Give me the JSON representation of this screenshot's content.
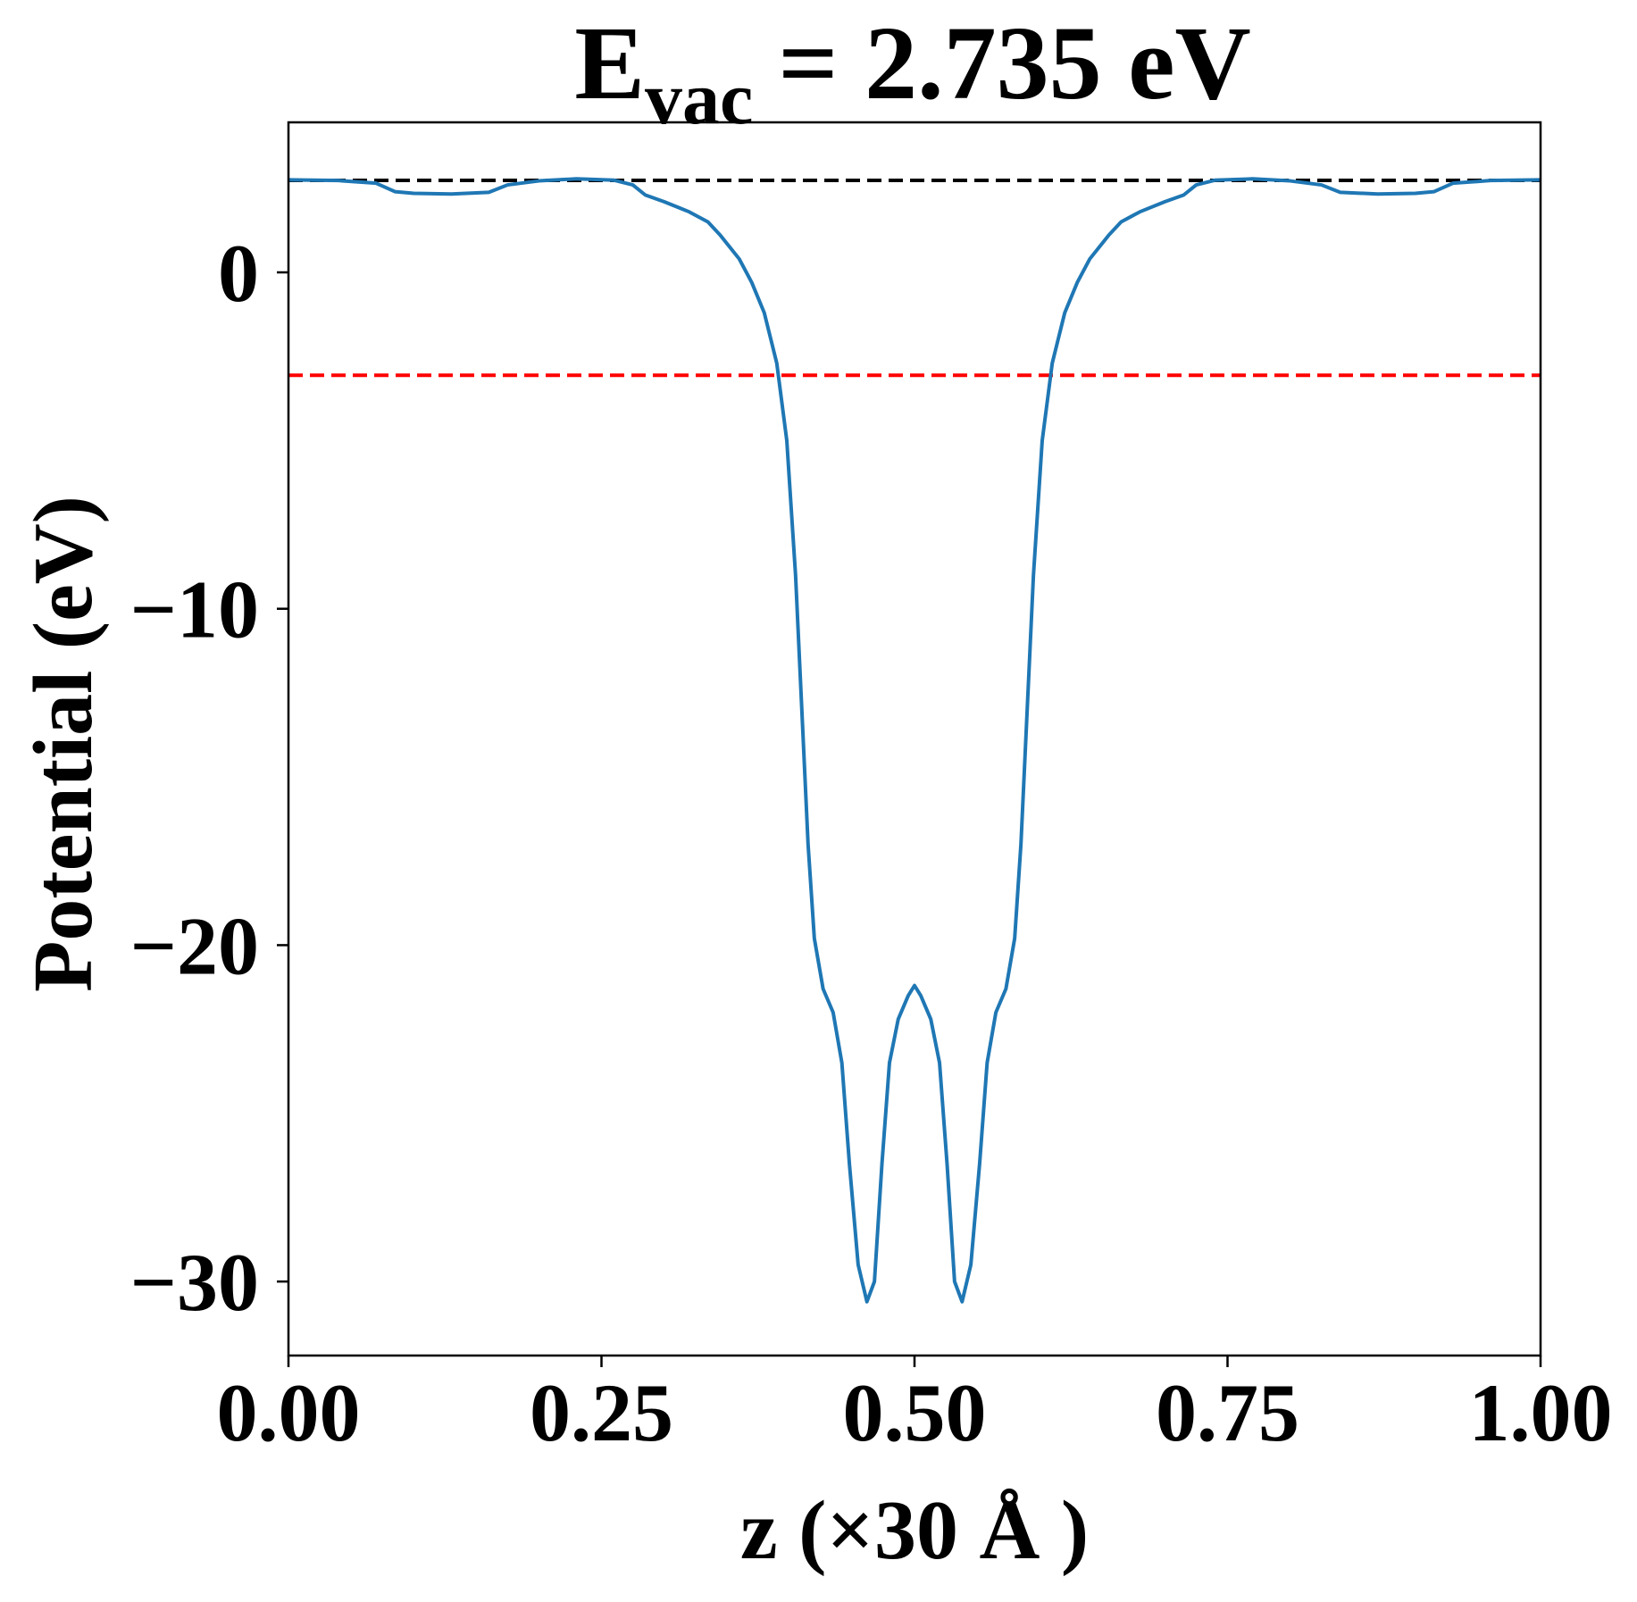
{
  "chart_data": {
    "type": "line",
    "title": {
      "main": "E",
      "subscript": "vac",
      "rest": "= 2.735 eV"
    },
    "xlabel": "z (×30 Å )",
    "ylabel": "Potential (eV)",
    "x": [
      0,
      0.04,
      0.07,
      0.085,
      0.1,
      0.13,
      0.16,
      0.175,
      0.2,
      0.23,
      0.26,
      0.275,
      0.285,
      0.3,
      0.32,
      0.335,
      0.345,
      0.36,
      0.37,
      0.38,
      0.39,
      0.398,
      0.405,
      0.41,
      0.415,
      0.42,
      0.427,
      0.435,
      0.442,
      0.448,
      0.455,
      0.462,
      0.468,
      0.474,
      0.48,
      0.487,
      0.495,
      0.5,
      0.505,
      0.513,
      0.52,
      0.526,
      0.532,
      0.538,
      0.545,
      0.552,
      0.558,
      0.565,
      0.573,
      0.58,
      0.585,
      0.59,
      0.595,
      0.602,
      0.61,
      0.62,
      0.63,
      0.64,
      0.655,
      0.665,
      0.68,
      0.7,
      0.715,
      0.725,
      0.74,
      0.77,
      0.8,
      0.825,
      0.84,
      0.87,
      0.9,
      0.915,
      0.93,
      0.96,
      1.0
    ],
    "series": [
      {
        "color": "#1f77b4",
        "values": [
          2.75,
          2.73,
          2.65,
          2.4,
          2.35,
          2.33,
          2.38,
          2.6,
          2.72,
          2.78,
          2.74,
          2.6,
          2.3,
          2.1,
          1.8,
          1.5,
          1.1,
          0.4,
          -0.3,
          -1.2,
          -2.7,
          -5,
          -9,
          -13,
          -17,
          -19.8,
          -21.3,
          -22,
          -23.5,
          -26.5,
          -29.5,
          -30.6,
          -30,
          -26.5,
          -23.5,
          -22.2,
          -21.5,
          -21.2,
          -21.5,
          -22.2,
          -23.5,
          -26.5,
          -30,
          -30.6,
          -29.5,
          -26.5,
          -23.5,
          -22,
          -21.3,
          -19.8,
          -17,
          -13,
          -9,
          -5,
          -2.7,
          -1.2,
          -0.3,
          0.4,
          1.1,
          1.5,
          1.8,
          2.1,
          2.3,
          2.6,
          2.74,
          2.78,
          2.72,
          2.6,
          2.38,
          2.33,
          2.35,
          2.4,
          2.65,
          2.73,
          2.75
        ]
      }
    ],
    "hlines": [
      {
        "value": 2.735,
        "color": "#000000"
      },
      {
        "value": -3.06,
        "color": "#ff0000"
      }
    ],
    "xlim": [
      0,
      1
    ],
    "ylim": [
      -32.2,
      4.46
    ],
    "xticks": [
      {
        "value": 0,
        "label": "0.00"
      },
      {
        "value": 0.25,
        "label": "0.25"
      },
      {
        "value": 0.5,
        "label": "0.50"
      },
      {
        "value": 0.75,
        "label": "0.75"
      },
      {
        "value": 1,
        "label": "1.00"
      }
    ],
    "yticks": [
      {
        "value": -30,
        "label": "−30"
      },
      {
        "value": -20,
        "label": "−20"
      },
      {
        "value": -10,
        "label": "−10"
      },
      0
    ],
    "grid": false
  }
}
